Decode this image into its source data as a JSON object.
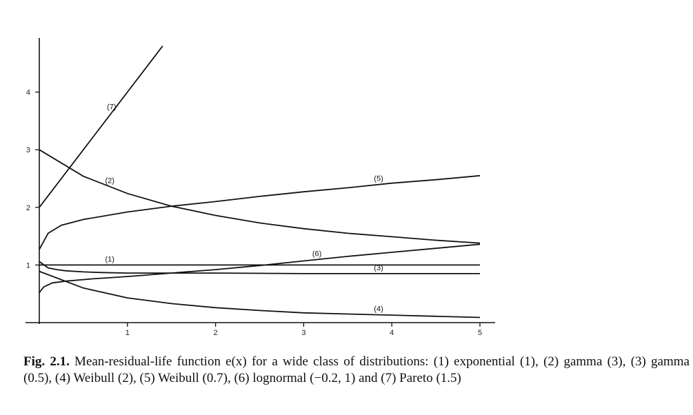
{
  "chart_data": {
    "type": "line",
    "title": "",
    "xlabel": "",
    "ylabel": "",
    "xlim": [
      0,
      5
    ],
    "ylim": [
      0,
      5
    ],
    "x_ticks": [
      1,
      2,
      3,
      4,
      5
    ],
    "y_ticks": [
      1,
      2,
      3,
      4
    ],
    "grid": false,
    "series": [
      {
        "name": "(1)",
        "x": [
          0,
          1,
          2,
          3,
          4,
          5
        ],
        "y": [
          1.0,
          1.0,
          1.0,
          1.0,
          1.0,
          1.0
        ],
        "label_at": 0.8
      },
      {
        "name": "(2)",
        "x": [
          0,
          0.5,
          1,
          1.5,
          2,
          2.5,
          3,
          3.5,
          4,
          4.5,
          5
        ],
        "y": [
          3.0,
          2.54,
          2.24,
          2.02,
          1.86,
          1.73,
          1.63,
          1.55,
          1.49,
          1.43,
          1.38
        ],
        "label_at": 0.8
      },
      {
        "name": "(3)",
        "x": [
          0,
          0.1,
          0.2,
          0.3,
          0.5,
          0.7,
          1,
          1.5,
          2,
          3,
          4,
          5
        ],
        "y": [
          1.06,
          0.95,
          0.92,
          0.9,
          0.88,
          0.87,
          0.86,
          0.86,
          0.86,
          0.85,
          0.85,
          0.85
        ],
        "label_at": 3.85
      },
      {
        "name": "(4)",
        "x": [
          0,
          0.5,
          1,
          1.5,
          2,
          2.5,
          3,
          3.5,
          4,
          4.5,
          5
        ],
        "y": [
          0.89,
          0.6,
          0.43,
          0.33,
          0.26,
          0.21,
          0.17,
          0.15,
          0.13,
          0.11,
          0.09
        ],
        "label_at": 3.85
      },
      {
        "name": "(5)",
        "x": [
          0,
          0.1,
          0.25,
          0.5,
          1,
          1.5,
          2,
          2.5,
          3,
          3.5,
          4,
          4.5,
          5
        ],
        "y": [
          1.27,
          1.55,
          1.69,
          1.79,
          1.92,
          2.02,
          2.1,
          2.19,
          2.27,
          2.34,
          2.42,
          2.48,
          2.55
        ],
        "label_at": 3.85
      },
      {
        "name": "(6)",
        "x": [
          0,
          0.05,
          0.15,
          0.3,
          0.6,
          1,
          1.5,
          2,
          2.5,
          3,
          3.5,
          4,
          4.5,
          5
        ],
        "y": [
          0.52,
          0.62,
          0.69,
          0.72,
          0.76,
          0.8,
          0.86,
          0.92,
          0.99,
          1.07,
          1.15,
          1.22,
          1.29,
          1.36
        ],
        "label_at": 3.15
      },
      {
        "name": "(7)",
        "x": [
          0,
          1.4
        ],
        "y": [
          2.0,
          4.8
        ],
        "label_at": 0.82
      }
    ]
  },
  "caption": {
    "fig_label": "Fig. 2.1.",
    "text": " Mean-residual-life function e(x) for a wide class of distributions: (1) exponential (1), (2) gamma (3), (3) gamma (0.5), (4) Weibull (2), (5) Weibull (0.7), (6) lognormal (−0.2, 1) and (7) Pareto (1.5)"
  }
}
